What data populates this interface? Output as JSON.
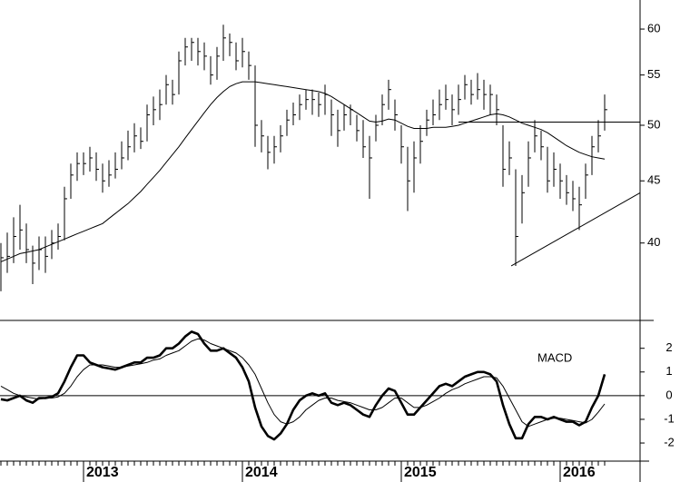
{
  "chart_data": [
    {
      "type": "ohlc",
      "log_scale": true,
      "color": "#000000",
      "ylim": [
        34.6,
        63.4
      ],
      "yticks": [
        40,
        45,
        50,
        55,
        60
      ],
      "high": [
        40,
        40.8,
        42,
        43,
        41.5,
        39.8,
        40.5,
        40.5,
        41,
        41.5,
        44.5,
        46.5,
        47.5,
        47.5,
        48,
        47.5,
        46.5,
        46.8,
        47.5,
        48.5,
        49.5,
        50.2,
        49.8,
        52,
        52.8,
        53.5,
        55,
        54.5,
        57.5,
        59,
        59,
        59,
        58.5,
        57,
        58,
        60.5,
        59.5,
        58.5,
        59,
        57.5,
        56,
        50.5,
        49,
        49,
        50,
        51.5,
        52.2,
        53,
        53.5,
        53.5,
        53.2,
        54,
        52.5,
        51.5,
        52,
        52,
        51,
        50.5,
        49,
        51,
        53,
        54.5,
        52.5,
        50,
        48,
        48.5,
        50,
        51.5,
        52.5,
        53.5,
        54,
        53,
        54,
        55,
        54.5,
        55.2,
        54.5,
        54,
        53,
        50,
        48.5,
        46,
        45.5,
        48.5,
        50.5,
        49.5,
        48,
        47.5,
        46.5,
        45.5,
        45,
        44.5,
        46.5,
        49,
        50.5,
        53
      ],
      "low": [
        36.5,
        37.8,
        38.5,
        39.5,
        38.5,
        37,
        38,
        37.8,
        38.8,
        39.5,
        40.2,
        43.5,
        45,
        45.5,
        45.8,
        45,
        44,
        44.5,
        45.2,
        46,
        46.8,
        47.5,
        47.8,
        48.5,
        50,
        50.5,
        52,
        52,
        53,
        56,
        56.5,
        56,
        55.5,
        54,
        54.5,
        56.5,
        57,
        55.5,
        55.8,
        54.5,
        48,
        47.5,
        46,
        46.5,
        47.5,
        49,
        50,
        50.5,
        51.5,
        51,
        50.8,
        51,
        49,
        48,
        49.5,
        50,
        48.5,
        47,
        43.5,
        48.5,
        50,
        51.5,
        49.5,
        46.5,
        42.5,
        44,
        46.5,
        49,
        50,
        50.5,
        51.5,
        50,
        51,
        52.5,
        52,
        52.5,
        51.5,
        51,
        50,
        44.5,
        45.5,
        38.3,
        41.5,
        44.5,
        47.5,
        46.8,
        44,
        44.5,
        43.5,
        43,
        42.5,
        41,
        43.5,
        45.5,
        47.5,
        49.5
      ],
      "close": [
        38.9,
        39,
        40.5,
        41,
        39.5,
        38.5,
        39.5,
        39,
        40,
        40.5,
        43.5,
        45.5,
        46.5,
        46.5,
        47,
        46,
        45,
        45.5,
        46,
        47,
        48,
        49,
        48.5,
        51,
        51.5,
        52,
        54,
        53,
        56.5,
        58,
        58.5,
        57.5,
        57,
        55,
        57,
        59,
        58.5,
        56.5,
        57.5,
        56,
        50,
        49,
        47.5,
        48,
        49,
        50.5,
        51,
        52,
        52.5,
        52.5,
        52,
        53,
        51,
        49.5,
        51,
        51.5,
        49.5,
        48,
        47,
        50,
        52,
        53.5,
        51,
        48,
        45,
        47,
        48.5,
        50.5,
        51,
        52,
        52.5,
        51.5,
        52.5,
        54,
        53,
        53.5,
        53,
        53,
        51.5,
        46,
        47,
        40.5,
        44,
        47,
        49,
        48,
        45,
        46,
        45,
        44,
        43.5,
        43,
        45.5,
        48,
        49,
        51.5
      ],
      "moving_average": [
        38.6,
        38.8,
        39.0,
        39.2,
        39.3,
        39.4,
        39.5,
        39.7,
        39.9,
        40.1,
        40.3,
        40.5,
        40.7,
        40.9,
        41.1,
        41.3,
        41.5,
        41.9,
        42.3,
        42.7,
        43.1,
        43.6,
        44.1,
        44.7,
        45.3,
        45.9,
        46.6,
        47.3,
        48.0,
        48.8,
        49.6,
        50.4,
        51.2,
        52.0,
        52.7,
        53.3,
        53.8,
        54.1,
        54.3,
        54.3,
        54.3,
        54.2,
        54.1,
        54.0,
        53.9,
        53.8,
        53.7,
        53.6,
        53.5,
        53.4,
        53.3,
        53.1,
        52.8,
        52.4,
        52.0,
        51.6,
        51.2,
        50.8,
        50.4,
        50.3,
        50.4,
        50.6,
        50.5,
        50.2,
        49.9,
        49.7,
        49.7,
        49.7,
        49.8,
        49.8,
        49.8,
        49.9,
        50.0,
        50.2,
        50.4,
        50.6,
        50.8,
        51.0,
        51.1,
        51.0,
        50.8,
        50.5,
        50.2,
        50.0,
        49.8,
        49.6,
        49.3,
        48.9,
        48.5,
        48.1,
        47.8,
        47.5,
        47.3,
        47.1,
        47.0,
        46.9
      ],
      "lines": [
        {
          "x": [
            72,
            100.6
          ],
          "values": [
            50.3,
            50.3
          ]
        },
        {
          "x": [
            80.3,
            100.6
          ],
          "values": [
            38.3,
            44
          ]
        }
      ]
    },
    {
      "type": "line",
      "label": "MACD",
      "categories": [
        null,
        null,
        null,
        null,
        null,
        null,
        null,
        null,
        null,
        null,
        null,
        null,
        null,
        "2013",
        null,
        null,
        null,
        null,
        null,
        null,
        null,
        null,
        null,
        null,
        null,
        null,
        null,
        null,
        null,
        null,
        null,
        null,
        null,
        null,
        null,
        null,
        null,
        null,
        "2014",
        null,
        null,
        null,
        null,
        null,
        null,
        null,
        null,
        null,
        null,
        null,
        null,
        null,
        null,
        null,
        null,
        null,
        null,
        null,
        null,
        null,
        null,
        null,
        null,
        "2015",
        null,
        null,
        null,
        null,
        null,
        null,
        null,
        null,
        null,
        null,
        null,
        null,
        null,
        null,
        null,
        null,
        null,
        null,
        null,
        null,
        null,
        null,
        null,
        null,
        "2016",
        null,
        null,
        null,
        null,
        null,
        null,
        null
      ],
      "ylim": [
        -2.65,
        3.1
      ],
      "yticks": [
        -2,
        -1,
        0,
        1,
        2
      ],
      "zero_line": true,
      "series": [
        {
          "color": "#000000",
          "width": 2.6,
          "values": [
            -0.15,
            -0.2,
            -0.1,
            0,
            -0.2,
            -0.3,
            -0.1,
            -0.1,
            -0.05,
            0.1,
            0.6,
            1.2,
            1.7,
            1.7,
            1.4,
            1.3,
            1.2,
            1.15,
            1.1,
            1.2,
            1.3,
            1.4,
            1.4,
            1.6,
            1.6,
            1.7,
            2.0,
            2.0,
            2.2,
            2.5,
            2.7,
            2.6,
            2.2,
            1.9,
            1.9,
            2.0,
            1.8,
            1.6,
            1.2,
            0.6,
            -0.5,
            -1.3,
            -1.7,
            -1.85,
            -1.6,
            -1.2,
            -0.6,
            -0.2,
            0,
            0.1,
            0,
            0.1,
            -0.3,
            -0.4,
            -0.3,
            -0.4,
            -0.6,
            -0.8,
            -0.9,
            -0.4,
            0,
            0.3,
            0.2,
            -0.3,
            -0.8,
            -0.8,
            -0.5,
            -0.2,
            0.1,
            0.4,
            0.5,
            0.4,
            0.6,
            0.8,
            0.9,
            1.0,
            1.0,
            0.9,
            0.6,
            -0.4,
            -1.2,
            -1.8,
            -1.8,
            -1.2,
            -0.9,
            -0.9,
            -1.0,
            -0.9,
            -1.0,
            -1.1,
            -1.1,
            -1.25,
            -1.1,
            -0.5,
            0.0,
            0.9
          ]
        },
        {
          "color": "#000000",
          "width": 1,
          "values": [
            0.4,
            0.25,
            0.1,
            0.0,
            -0.05,
            -0.1,
            -0.15,
            -0.1,
            -0.1,
            -0.05,
            0.1,
            0.4,
            0.8,
            1.1,
            1.3,
            1.3,
            1.3,
            1.25,
            1.2,
            1.2,
            1.25,
            1.3,
            1.35,
            1.4,
            1.5,
            1.55,
            1.7,
            1.8,
            1.9,
            2.1,
            2.3,
            2.4,
            2.35,
            2.2,
            2.1,
            2.0,
            1.9,
            1.8,
            1.6,
            1.3,
            0.9,
            0.3,
            -0.3,
            -0.8,
            -1.1,
            -1.2,
            -1.1,
            -0.9,
            -0.6,
            -0.4,
            -0.2,
            -0.1,
            -0.1,
            -0.2,
            -0.25,
            -0.3,
            -0.4,
            -0.5,
            -0.6,
            -0.6,
            -0.5,
            -0.3,
            -0.1,
            -0.1,
            -0.3,
            -0.5,
            -0.5,
            -0.4,
            -0.25,
            -0.1,
            0.1,
            0.25,
            0.35,
            0.5,
            0.6,
            0.7,
            0.8,
            0.8,
            0.75,
            0.4,
            -0.1,
            -0.6,
            -1.1,
            -1.3,
            -1.2,
            -1.1,
            -1.0,
            -0.95,
            -0.95,
            -1.0,
            -1.05,
            -1.1,
            -1.15,
            -1.0,
            -0.7,
            -0.35
          ]
        }
      ]
    }
  ]
}
